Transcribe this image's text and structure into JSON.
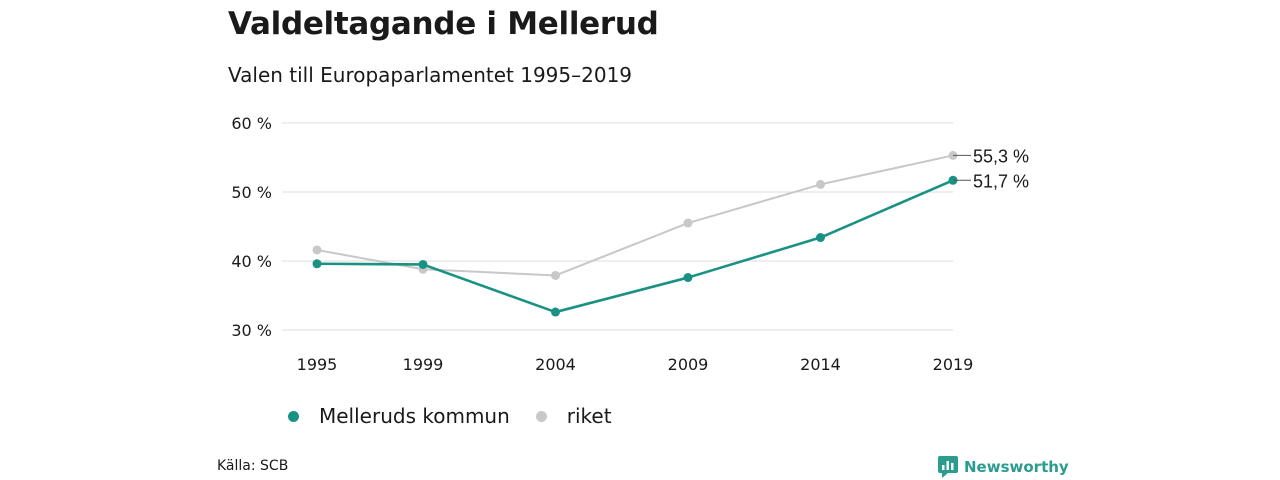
{
  "title": "Valdeltagande i Mellerud",
  "subtitle": "Valen till Europaparlamentet 1995–2019",
  "source": "Källa: SCB",
  "brand": "Newsworthy",
  "colors": {
    "teal": "#1a9283",
    "gray": "#c8c8c8",
    "grid": "#dcdcdc"
  },
  "chart_data": {
    "type": "line",
    "x": [
      1995,
      1999,
      2004,
      2009,
      2014,
      2019
    ],
    "ylim": [
      30,
      60
    ],
    "yticks": [
      30,
      40,
      50,
      60
    ],
    "ytick_labels": [
      "30 %",
      "40 %",
      "50 %",
      "60 %"
    ],
    "series": [
      {
        "name": "Melleruds kommun",
        "values": [
          39.6,
          39.5,
          32.6,
          37.6,
          43.4,
          51.7
        ],
        "color": "#1a9283",
        "end_label": "51,7 %"
      },
      {
        "name": "riket",
        "values": [
          41.6,
          38.8,
          37.9,
          45.5,
          51.1,
          55.3
        ],
        "color": "#c8c8c8",
        "end_label": "55,3 %"
      }
    ],
    "grid": true,
    "legend": "bottom-left"
  }
}
